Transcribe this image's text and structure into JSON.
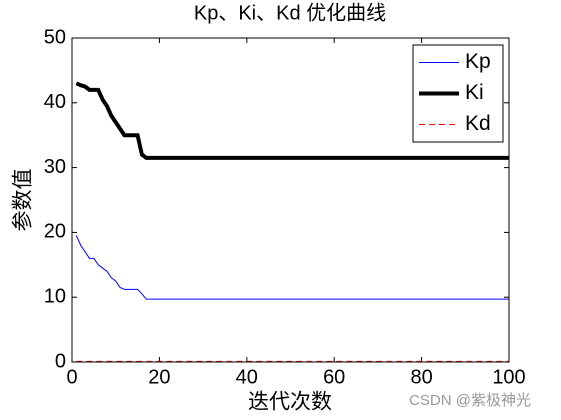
{
  "chart_data": {
    "type": "line",
    "title": "Kp、Ki、Kd 优化曲线",
    "xlabel": "迭代次数",
    "ylabel": "参数值",
    "x": [
      1,
      2,
      3,
      4,
      5,
      6,
      7,
      8,
      9,
      10,
      11,
      12,
      13,
      14,
      15,
      16,
      17,
      100
    ],
    "series": [
      {
        "name": "Kp",
        "color": "#0000ff",
        "linewidth": 1,
        "linestyle": "solid",
        "values": [
          19.5,
          18,
          17,
          16,
          16,
          15,
          14.5,
          14,
          13,
          12.5,
          11.5,
          11.2,
          11.2,
          11.2,
          11.2,
          10.5,
          9.7,
          9.7
        ]
      },
      {
        "name": "Ki",
        "color": "#000000",
        "linewidth": 4,
        "linestyle": "solid",
        "values": [
          43,
          42.7,
          42.5,
          42,
          42,
          42,
          40.5,
          39.5,
          38,
          37,
          36,
          35,
          35,
          35,
          35,
          32,
          31.5,
          31.5
        ]
      },
      {
        "name": "Kd",
        "color": "#ff0000",
        "linewidth": 1,
        "linestyle": "dashed",
        "values": [
          0.1,
          0.1,
          0.1,
          0.1,
          0.1,
          0.1,
          0.1,
          0.1,
          0.1,
          0.1,
          0.1,
          0.1,
          0.1,
          0.1,
          0.1,
          0.1,
          0.1,
          0.1
        ]
      }
    ],
    "xlim": [
      0,
      100
    ],
    "xticks": [
      0,
      20,
      40,
      60,
      80,
      100
    ],
    "ylim": [
      0,
      50
    ],
    "yticks": [
      0,
      10,
      20,
      30,
      40,
      50
    ],
    "legend": "upper right",
    "watermark": "CSDN @紫极神光"
  }
}
